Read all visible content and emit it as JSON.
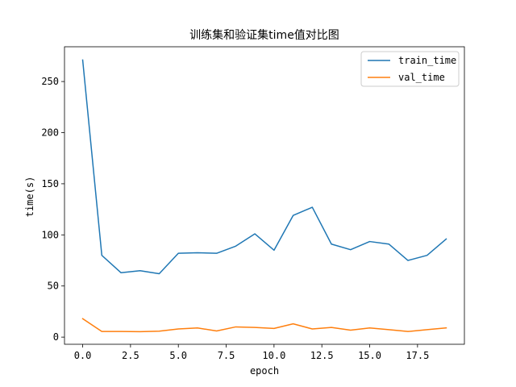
{
  "chart_data": {
    "type": "line",
    "title": "训练集和验证集time值对比图",
    "xlabel": "epoch",
    "ylabel": "time(s)",
    "xlim": [
      -0.95,
      19.95
    ],
    "ylim": [
      -7,
      284
    ],
    "xticks": [
      0.0,
      2.5,
      5.0,
      7.5,
      10.0,
      12.5,
      15.0,
      17.5
    ],
    "xtick_labels": [
      "0.0",
      "2.5",
      "5.0",
      "7.5",
      "10.0",
      "12.5",
      "15.0",
      "17.5"
    ],
    "yticks": [
      0,
      50,
      100,
      150,
      200,
      250
    ],
    "ytick_labels": [
      "0",
      "50",
      "100",
      "150",
      "200",
      "250"
    ],
    "legend_position": "upper right",
    "grid": false,
    "x": [
      0,
      1,
      2,
      3,
      4,
      5,
      6,
      7,
      8,
      9,
      10,
      11,
      12,
      13,
      14,
      15,
      16,
      17,
      18,
      19
    ],
    "series": [
      {
        "name": "train_time",
        "color": "#1f77b4",
        "values": [
          271,
          80,
          63,
          65,
          62,
          82,
          82.5,
          82,
          89,
          101,
          85,
          119,
          127,
          91,
          85.5,
          93.5,
          91,
          75,
          80,
          96
        ]
      },
      {
        "name": "val_time",
        "color": "#ff7f0e",
        "values": [
          18,
          5.5,
          5.5,
          5.3,
          5.8,
          8,
          9,
          6,
          10,
          9.5,
          8.5,
          13,
          8,
          9.5,
          6.8,
          9,
          7.3,
          5.5,
          7.3,
          9
        ]
      }
    ]
  }
}
